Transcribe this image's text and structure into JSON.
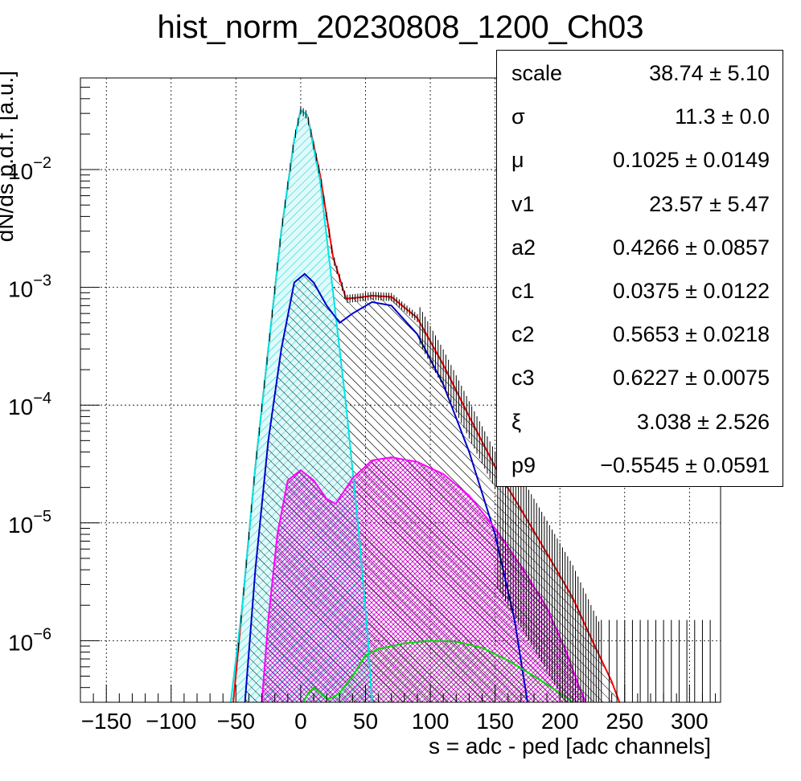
{
  "chart_data": {
    "type": "histogram-with-fit",
    "title": "hist_norm_20230808_1200_Ch03",
    "xlabel": "s = adc - ped [adc channels]",
    "ylabel": "dN/ds p.d.f. [a.u.]",
    "xlim": [
      -170,
      324
    ],
    "ylim": [
      3e-07,
      0.06
    ],
    "yscale": "log",
    "grid": true,
    "x_ticks": [
      -150,
      -100,
      -50,
      0,
      50,
      100,
      150,
      200,
      250,
      300
    ],
    "y_ticks": [
      {
        "value": 0.01,
        "base": "10",
        "exp": "−2"
      },
      {
        "value": 0.001,
        "base": "10",
        "exp": "−3"
      },
      {
        "value": 0.0001,
        "base": "10",
        "exp": "−4"
      },
      {
        "value": 1e-05,
        "base": "10",
        "exp": "−5"
      },
      {
        "value": 1e-06,
        "base": "10",
        "exp": "−6"
      }
    ],
    "series": [
      {
        "color": "#ff0000",
        "fill": "hatch-black",
        "points": [
          [
            -52,
            3e-07
          ],
          [
            -45,
            2e-06
          ],
          [
            -35,
            3e-05
          ],
          [
            -25,
            0.0003
          ],
          [
            -15,
            0.003
          ],
          [
            -5,
            0.018
          ],
          [
            0,
            0.032
          ],
          [
            5,
            0.029
          ],
          [
            15,
            0.009
          ],
          [
            25,
            0.0018
          ],
          [
            35,
            0.0008
          ],
          [
            45,
            0.00082
          ],
          [
            55,
            0.00085
          ],
          [
            70,
            0.00083
          ],
          [
            90,
            0.00055
          ],
          [
            110,
            0.00022
          ],
          [
            130,
            8e-05
          ],
          [
            150,
            3e-05
          ],
          [
            170,
            1.3e-05
          ],
          [
            190,
            5.5e-06
          ],
          [
            210,
            2.3e-06
          ],
          [
            225,
            1e-06
          ],
          [
            240,
            4.5e-07
          ],
          [
            246,
            3e-07
          ]
        ]
      },
      {
        "color": "#00e5e5",
        "fill": "hatch-cyan",
        "points": [
          [
            -54,
            3e-07
          ],
          [
            -45,
            2e-06
          ],
          [
            -35,
            3e-05
          ],
          [
            -25,
            0.0003
          ],
          [
            -15,
            0.003
          ],
          [
            -5,
            0.018
          ],
          [
            0,
            0.032
          ],
          [
            5,
            0.029
          ],
          [
            15,
            0.008
          ],
          [
            25,
            0.0009
          ],
          [
            35,
            0.0001
          ],
          [
            45,
            8e-06
          ],
          [
            52,
            1e-06
          ],
          [
            55,
            3e-07
          ]
        ]
      },
      {
        "color": "#0000cc",
        "fill": "hatch-black",
        "points": [
          [
            -43,
            3e-07
          ],
          [
            -35,
            4e-06
          ],
          [
            -25,
            5e-05
          ],
          [
            -15,
            0.0003
          ],
          [
            -5,
            0.0011
          ],
          [
            3,
            0.0013
          ],
          [
            10,
            0.0011
          ],
          [
            20,
            0.0007
          ],
          [
            30,
            0.0005
          ],
          [
            40,
            0.0006
          ],
          [
            55,
            0.00075
          ],
          [
            70,
            0.0007
          ],
          [
            90,
            0.0004
          ],
          [
            110,
            0.00015
          ],
          [
            130,
            4e-05
          ],
          [
            150,
            8e-06
          ],
          [
            165,
            1.5e-06
          ],
          [
            175,
            3e-07
          ]
        ]
      },
      {
        "color": "#ff00ff",
        "fill": "hatch-magenta",
        "points": [
          [
            -30,
            3e-07
          ],
          [
            -25,
            1.5e-06
          ],
          [
            -18,
            8e-06
          ],
          [
            -10,
            2.3e-05
          ],
          [
            0,
            2.8e-05
          ],
          [
            10,
            2.3e-05
          ],
          [
            20,
            1.6e-05
          ],
          [
            27,
            1.45e-05
          ],
          [
            40,
            2.4e-05
          ],
          [
            55,
            3.4e-05
          ],
          [
            70,
            3.6e-05
          ],
          [
            90,
            3.3e-05
          ],
          [
            110,
            2.6e-05
          ],
          [
            130,
            1.7e-05
          ],
          [
            150,
            9e-06
          ],
          [
            170,
            4.3e-06
          ],
          [
            190,
            1.9e-06
          ],
          [
            205,
            8e-07
          ],
          [
            215,
            4e-07
          ],
          [
            220,
            3e-07
          ]
        ]
      },
      {
        "color": "#00dd00",
        "fill": "hatch-green",
        "points": [
          [
            2,
            3e-07
          ],
          [
            6,
            3.6e-07
          ],
          [
            10,
            4e-07
          ],
          [
            15,
            3.6e-07
          ],
          [
            20,
            3.2e-07
          ],
          [
            25,
            3.3e-07
          ],
          [
            30,
            3.6e-07
          ],
          [
            40,
            5e-07
          ],
          [
            50,
            7.5e-07
          ],
          [
            60,
            8.5e-07
          ],
          [
            80,
            9.5e-07
          ],
          [
            100,
            1e-06
          ],
          [
            120,
            9.8e-07
          ],
          [
            140,
            8.7e-07
          ],
          [
            160,
            6.8e-07
          ],
          [
            180,
            5e-07
          ],
          [
            200,
            3.6e-07
          ],
          [
            210,
            3e-07
          ]
        ]
      }
    ]
  },
  "stats": {
    "rows": [
      {
        "name": "scale",
        "value": "38.74 ± 5.10"
      },
      {
        "name": "σ",
        "value": "11.3 ± 0.0"
      },
      {
        "name": "μ",
        "value": "0.1025 ± 0.0149"
      },
      {
        "name": "v1",
        "value": "23.57 ± 5.47"
      },
      {
        "name": "a2",
        "value": "0.4266 ± 0.0857"
      },
      {
        "name": "c1",
        "value": "0.0375 ± 0.0122"
      },
      {
        "name": "c2",
        "value": "0.5653 ± 0.0218"
      },
      {
        "name": "c3",
        "value": "0.6227 ± 0.0075"
      },
      {
        "name": "ξ",
        "value": "3.038 ± 2.526"
      },
      {
        "name": "p9",
        "value": "−0.5545 ± 0.0591"
      }
    ]
  }
}
